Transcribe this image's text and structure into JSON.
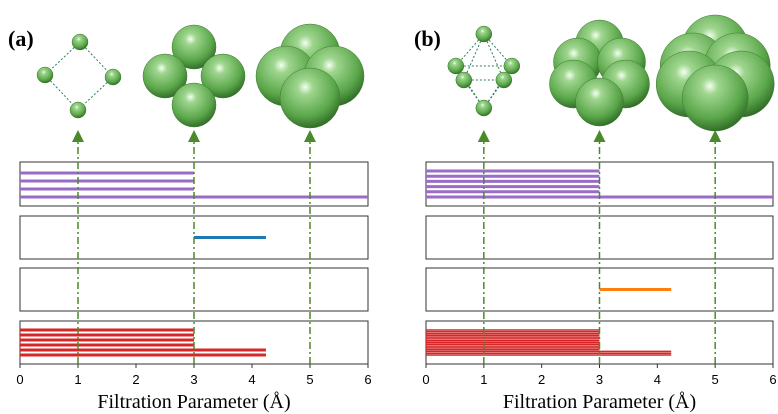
{
  "chart_data": [
    {
      "type": "barcode",
      "label": "(a)",
      "xlabel": "Filtration Parameter (Å)",
      "xlim": [
        0,
        6
      ],
      "xticks": [
        0,
        1,
        2,
        3,
        4,
        5,
        6
      ],
      "snapshots": [
        1,
        3,
        5
      ],
      "panels": [
        {
          "color": "#9b6bc8",
          "bars": [
            [
              0,
              3
            ],
            [
              0,
              3
            ],
            [
              0,
              3
            ],
            [
              0,
              6
            ]
          ]
        },
        {
          "color": "#1f77b4",
          "bars": [
            [
              3,
              4.24
            ]
          ]
        },
        {
          "color": "#ff7f0e",
          "bars": []
        },
        {
          "color": "#d62728",
          "bars": [
            [
              0,
              3
            ],
            [
              0,
              3
            ],
            [
              0,
              3
            ],
            [
              0,
              3
            ],
            [
              0,
              4.24
            ],
            [
              0,
              4.24
            ]
          ]
        }
      ]
    },
    {
      "type": "barcode",
      "label": "(b)",
      "xlabel": "Filtration Parameter (Å)",
      "xlim": [
        0,
        6
      ],
      "xticks": [
        0,
        1,
        2,
        3,
        4,
        5,
        6
      ],
      "snapshots": [
        1,
        3,
        5
      ],
      "panels": [
        {
          "color": "#9b6bc8",
          "bars": [
            [
              0,
              3
            ],
            [
              0,
              3
            ],
            [
              0,
              3
            ],
            [
              0,
              3
            ],
            [
              0,
              3
            ],
            [
              0,
              6
            ]
          ]
        },
        {
          "color": "#1f77b4",
          "bars": []
        },
        {
          "color": "#ff7f0e",
          "bars": [
            [
              3,
              4.24
            ]
          ]
        },
        {
          "color": "#d62728",
          "bars": [
            [
              0,
              3
            ],
            [
              0,
              3
            ],
            [
              0,
              3
            ],
            [
              0,
              3
            ],
            [
              0,
              3
            ],
            [
              0,
              3
            ],
            [
              0,
              3
            ],
            [
              0,
              3
            ],
            [
              0,
              3
            ],
            [
              0,
              3
            ],
            [
              0,
              3
            ],
            [
              0,
              3
            ],
            [
              0,
              4.24
            ],
            [
              0,
              4.24
            ],
            [
              0,
              4.24
            ]
          ]
        }
      ]
    }
  ]
}
